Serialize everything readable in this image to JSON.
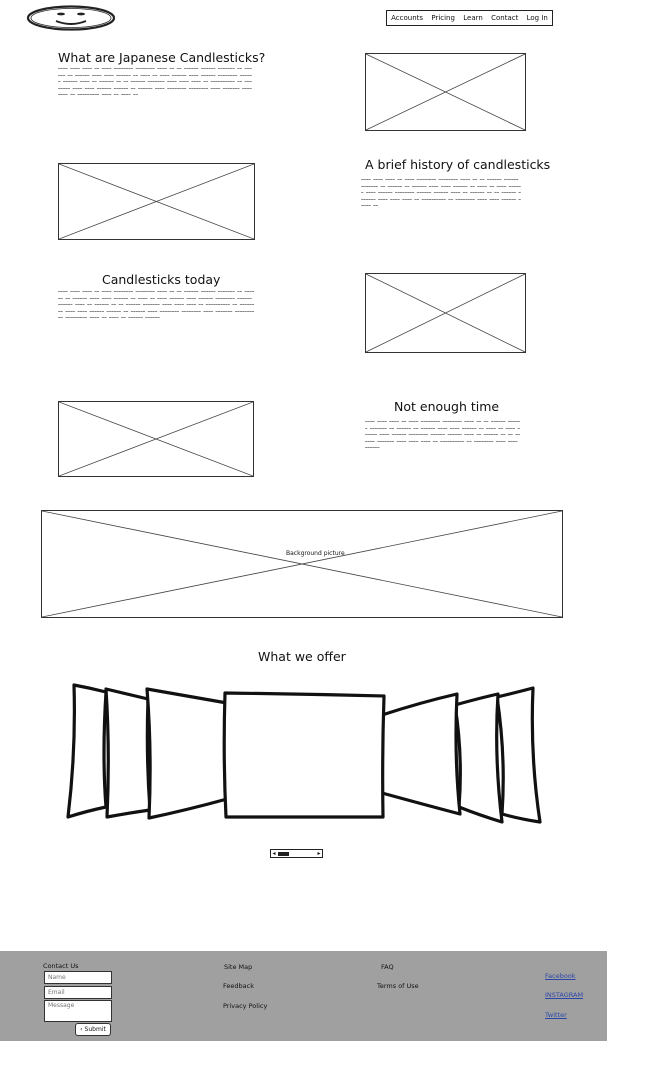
{
  "nav": {
    "items": [
      "Accounts",
      "Pricing",
      "Learn",
      "Contact",
      "Log In"
    ]
  },
  "sections": {
    "japanese_candlesticks": {
      "title": "What are Japanese Candlesticks?",
      "body": "~~~~ ~~~~ ~~~~ ~~ ~~~~ ~~~~~~~~ ~~~~~~~~ ~~~~ ~~ ~~ ~~~~~~ ~~~~~~ ~~~~~~~ ~~ ~~~~~~ ~~ ~~~~~~ ~~~~ ~~~~ ~~~~~~ ~~ ~~~~ ~~ ~~~~ ~~~~~~ ~~~~ ~~~~~~ ~~~~~~~~ ~~~~~~ ~~~~~~ ~~~~ ~~ ~~~~~~ ~~ ~~ ~~~~~~ ~~~~~~~ ~~~~ ~~~~ ~~~~ ~~ ~~~~~~~~~~ ~~ ~~~~~~~~ ~~~~ ~~~~ ~~~~~~ ~~~~~~ ~~ ~~~~~~ ~~~~ ~~~~~~~~ ~~~~~~~~ ~~~~ ~~~~~~~ ~~~~~~~~ ~~ ~~~~~~~~~ ~~~~ ~~ ~~~~ ~~"
    },
    "history": {
      "title": "A brief history of candlesticks",
      "body": "~~~~ ~~~~ ~~~~ ~~ ~~~~ ~~~~~~~~ ~~~~~~~~ ~~~~ ~~ ~~ ~~~~~~ ~~~~~~ ~~~~~~~ ~~ ~~~~~~ ~~ ~~~~~~ ~~~~ ~~~~ ~~~~~~ ~~ ~~~~ ~~ ~~~~ ~~~~~~ ~~~~ ~~~~~~ ~~~~~~~~ ~~~~~~ ~~~~~~ ~~~~ ~~ ~~~~~~ ~~ ~~ ~~~~~~ ~~~~~~~ ~~~~ ~~~~ ~~~~ ~~ ~~~~~~~~~~ ~~ ~~~~~~~~ ~~~~ ~~~~ ~~~~~~ ~~~~~ ~~"
    },
    "today": {
      "title": "Candlesticks today",
      "body": "~~~~ ~~~~ ~~~~ ~~ ~~~~ ~~~~~~~~ ~~~~~~~~ ~~~~ ~~ ~~ ~~~~~~ ~~~~~~ ~~~~~~~ ~~ ~~~~~~ ~~ ~~~~~~ ~~~~ ~~~~ ~~~~~~ ~~ ~~~~ ~~ ~~~~ ~~~~~~ ~~~~ ~~~~~~ ~~~~~~~~ ~~~~~~ ~~~~~~ ~~~~ ~~ ~~~~~~ ~~ ~~ ~~~~~~ ~~~~~~~ ~~~~ ~~~~ ~~~~ ~~ ~~~~~~~~~~ ~~ ~~~~~~~~ ~~~~ ~~~~ ~~~~~~ ~~~~~~ ~~ ~~~~~~ ~~~~ ~~~~~~~~ ~~~~~~~~ ~~~~ ~~~~~~~ ~~~~~~~~ ~~ ~~~~~~~~~ ~~~~ ~~ ~~~~ ~~ ~~~~~~ ~~~~~~"
    },
    "not_enough_time": {
      "title": "Not enough time",
      "body": "~~~~ ~~~~ ~~~~ ~~ ~~~~ ~~~~~~~~ ~~~~~~~~ ~~~~ ~~ ~~ ~~~~~~ ~~~~~~ ~~~~~~~ ~~ ~~~~~~ ~~ ~~~~~~ ~~~~ ~~~~ ~~~~~~ ~~ ~~~~ ~~ ~~~~ ~~~~~~ ~~~~ ~~~~~~ ~~~~~~~~ ~~~~~~ ~~~~~~ ~~~~ ~~ ~~~~~~ ~~ ~~ ~~~~~~ ~~~~~~~ ~~~~ ~~~~ ~~~~ ~~ ~~~~~~~~~~ ~~ ~~~~~~~~ ~~~~ ~~~~ ~~~~~~"
    }
  },
  "background_caption": "Background picture",
  "offer": {
    "title": "What we offer"
  },
  "footer": {
    "contact_title": "Contact Us",
    "form": {
      "name_placeholder": "Name",
      "email_placeholder": "Email",
      "message_placeholder": "Message",
      "submit_label": "Submit"
    },
    "col2": [
      "Site Map",
      "Feedback",
      "Privacy Policy"
    ],
    "col3": [
      "FAQ",
      "Terms of Use"
    ],
    "social": [
      "Facebook",
      "INSTAGRAM",
      "Twitter"
    ]
  }
}
